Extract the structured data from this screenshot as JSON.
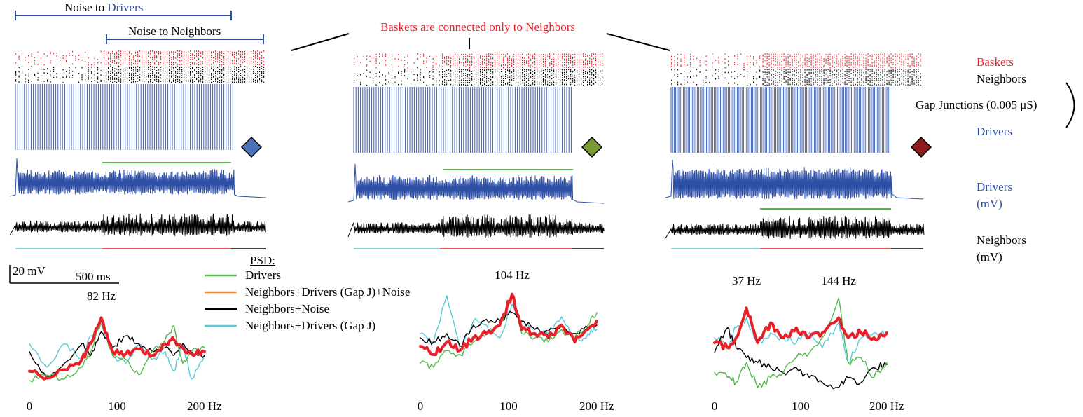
{
  "header": {
    "noise_drivers_prefix": "Noise to ",
    "noise_drivers_word": "Drivers",
    "noise_neighbors": "Noise to Neighbors",
    "baskets_connected": "Baskets are connected only to Neighbors"
  },
  "right_labels": {
    "baskets": "Baskets",
    "neighbors": "Neighbors",
    "gap_junctions": "Gap Junctions (0.005 μS)",
    "drivers": "Drivers",
    "drivers_mv_1": "Drivers",
    "drivers_mv_2": "(mV)",
    "neighbors_mv_1": "Neighbors",
    "neighbors_mv_2": "(mV)"
  },
  "scale": {
    "voltage": "20 mV",
    "time": "500 ms"
  },
  "legend": {
    "title": "PSD:",
    "entries": [
      {
        "label": "Drivers",
        "color": "#4fb848"
      },
      {
        "label": "Neighbors+Drivers (Gap J)+Noise",
        "color": "#f08a2c"
      },
      {
        "label": "Neighbors+Noise",
        "color": "#000000"
      },
      {
        "label": "Neighbors+Drivers (Gap J)",
        "color": "#5bc8d8"
      }
    ]
  },
  "colors": {
    "baskets": "#e8202a",
    "neighbors": "#000000",
    "drivers": "#2e4fa6",
    "window_green": "#4fb848",
    "window_cyan": "#5bc8d8",
    "window_red": "#e8202a",
    "psd_thick": "#e8202a",
    "diamond_1": "#4a72b8",
    "diamond_2": "#7a9a3a",
    "diamond_3": "#8b1a1a"
  },
  "chart_data": [
    {
      "type": "line",
      "title": "",
      "xlabel": "",
      "ylabel": "",
      "x_ticks": [
        "0",
        "100",
        "200 Hz"
      ],
      "xlim": [
        0,
        200
      ],
      "peak_labels": [
        {
          "text": "82 Hz",
          "x": 82
        }
      ],
      "x": [
        0,
        20,
        40,
        60,
        70,
        82,
        95,
        110,
        125,
        140,
        155,
        165,
        175,
        185,
        200
      ],
      "series": [
        {
          "key": "thick",
          "values": [
            0.2,
            0.12,
            0.22,
            0.35,
            0.55,
            0.88,
            0.45,
            0.42,
            0.48,
            0.4,
            0.55,
            0.6,
            0.5,
            0.42,
            0.45
          ]
        },
        {
          "key": "drivers",
          "values": [
            0.08,
            0.15,
            0.1,
            0.25,
            0.45,
            0.85,
            0.4,
            0.35,
            0.15,
            0.45,
            0.6,
            0.78,
            0.3,
            0.45,
            0.5
          ]
        },
        {
          "key": "noise",
          "values": [
            0.45,
            0.1,
            0.3,
            0.55,
            0.4,
            0.7,
            0.5,
            0.65,
            0.55,
            0.45,
            0.5,
            0.4,
            0.55,
            0.45,
            0.4
          ]
        },
        {
          "key": "gapj",
          "values": [
            0.55,
            0.25,
            0.55,
            0.35,
            0.65,
            0.8,
            0.4,
            0.3,
            0.55,
            0.35,
            0.45,
            0.2,
            0.55,
            0.1,
            0.4
          ]
        }
      ]
    },
    {
      "type": "line",
      "title": "",
      "xlabel": "",
      "ylabel": "",
      "x_ticks": [
        "0",
        "100",
        "200 Hz"
      ],
      "xlim": [
        0,
        200
      ],
      "peak_labels": [
        {
          "text": "104 Hz",
          "x": 104
        }
      ],
      "x": [
        0,
        15,
        30,
        45,
        60,
        75,
        90,
        104,
        115,
        130,
        145,
        160,
        175,
        190,
        200
      ],
      "series": [
        {
          "key": "thick",
          "values": [
            0.3,
            0.2,
            0.35,
            0.25,
            0.4,
            0.45,
            0.55,
            0.92,
            0.5,
            0.45,
            0.4,
            0.55,
            0.35,
            0.5,
            0.6
          ]
        },
        {
          "key": "drivers",
          "values": [
            0.1,
            0.05,
            0.25,
            0.2,
            0.35,
            0.45,
            0.55,
            0.9,
            0.45,
            0.4,
            0.35,
            0.5,
            0.4,
            0.55,
            0.7
          ]
        },
        {
          "key": "noise",
          "values": [
            0.4,
            0.35,
            0.45,
            0.3,
            0.55,
            0.62,
            0.6,
            0.7,
            0.6,
            0.5,
            0.48,
            0.55,
            0.45,
            0.52,
            0.55
          ]
        },
        {
          "key": "gapj",
          "values": [
            0.45,
            0.35,
            0.9,
            0.25,
            0.6,
            0.55,
            0.4,
            0.8,
            0.55,
            0.5,
            0.45,
            0.65,
            0.35,
            0.45,
            0.5
          ]
        }
      ]
    },
    {
      "type": "line",
      "title": "",
      "xlabel": "",
      "ylabel": "",
      "x_ticks": [
        "0",
        "100",
        "200 Hz"
      ],
      "xlim": [
        0,
        200
      ],
      "peak_labels": [
        {
          "text": "37 Hz",
          "x": 37
        },
        {
          "text": "144 Hz",
          "x": 144
        }
      ],
      "x": [
        0,
        15,
        25,
        37,
        50,
        65,
        80,
        95,
        110,
        125,
        144,
        155,
        170,
        185,
        200
      ],
      "series": [
        {
          "key": "thick",
          "values": [
            0.5,
            0.45,
            0.55,
            0.85,
            0.5,
            0.7,
            0.55,
            0.65,
            0.55,
            0.6,
            0.75,
            0.55,
            0.6,
            0.55,
            0.6
          ]
        },
        {
          "key": "drivers",
          "values": [
            0.2,
            0.15,
            0.1,
            0.3,
            0.05,
            0.15,
            0.2,
            0.35,
            0.4,
            0.55,
            0.95,
            0.3,
            0.35,
            0.15,
            0.3
          ]
        },
        {
          "key": "noise",
          "values": [
            0.4,
            0.65,
            0.45,
            0.35,
            0.3,
            0.25,
            0.2,
            0.25,
            0.15,
            0.1,
            0.05,
            0.15,
            0.1,
            0.25,
            0.28
          ]
        },
        {
          "key": "gapj",
          "values": [
            0.55,
            0.45,
            0.65,
            0.75,
            0.5,
            0.6,
            0.55,
            0.5,
            0.6,
            0.45,
            0.7,
            0.3,
            0.55,
            0.6,
            0.58
          ]
        }
      ]
    }
  ]
}
